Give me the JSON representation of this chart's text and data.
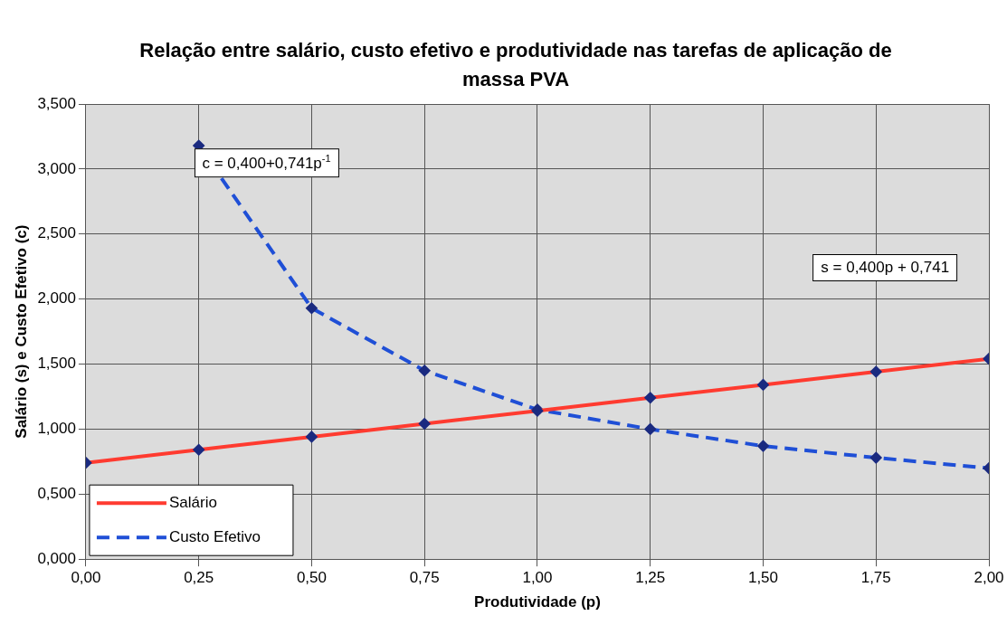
{
  "chart_data": {
    "type": "line",
    "title": "Relação entre salário, custo efetivo e produtividade nas tarefas de aplicação de massa PVA",
    "xlabel": "Produtividade (p)",
    "ylabel": "Salário (s) e Custo Efetivo (c)",
    "series": [
      {
        "name": "Salário",
        "color": "#ff3b30",
        "line_style": "solid",
        "x": [
          0,
          0.25,
          0.5,
          0.75,
          1,
          1.25,
          1.5,
          1.75,
          2
        ],
        "values": [
          0.741,
          0.841,
          0.941,
          1.041,
          1.141,
          1.241,
          1.341,
          1.441,
          1.541
        ]
      },
      {
        "name": "Custo Efetivo",
        "color": "#1f4fd6",
        "line_style": "dashed",
        "x": [
          0.25,
          0.5,
          0.75,
          1,
          1.25,
          1.5,
          1.75,
          2
        ],
        "values": [
          3.18,
          1.93,
          1.45,
          1.15,
          1.0,
          0.87,
          0.78,
          0.7
        ]
      }
    ],
    "xlim": [
      0,
      2
    ],
    "xticks": [
      {
        "value": 0,
        "label": "0,00"
      },
      {
        "value": 0.25,
        "label": "0,25"
      },
      {
        "value": 0.5,
        "label": "0,50"
      },
      {
        "value": 0.75,
        "label": "0,75"
      },
      {
        "value": 1,
        "label": "1,00"
      },
      {
        "value": 1.25,
        "label": "1,25"
      },
      {
        "value": 1.5,
        "label": "1,50"
      },
      {
        "value": 1.75,
        "label": "1,75"
      },
      {
        "value": 2,
        "label": "2,00"
      }
    ],
    "ylim": [
      0,
      3.5
    ],
    "yticks": [
      {
        "value": 0,
        "label": "0,000"
      },
      {
        "value": 0.5,
        "label": "0,500"
      },
      {
        "value": 1,
        "label": "1,000"
      },
      {
        "value": 1.5,
        "label": "1,500"
      },
      {
        "value": 2,
        "label": "2,000"
      },
      {
        "value": 2.5,
        "label": "2,500"
      },
      {
        "value": 3,
        "label": "3,000"
      },
      {
        "value": 3.5,
        "label": "3,500"
      }
    ],
    "annotations": [
      "c = 0,400+0,741p$^{-1}$",
      "s = 0,400p + 0,741"
    ],
    "grid": true,
    "legend": "bottom left",
    "marker": "diamond"
  }
}
